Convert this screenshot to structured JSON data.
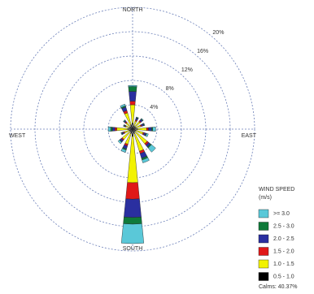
{
  "chart_data": {
    "type": "windrose",
    "categories": [
      "NORTH",
      null,
      null,
      null,
      "EAST",
      null,
      null,
      null,
      "SOUTH",
      null,
      null,
      null,
      "WEST",
      null,
      null,
      null
    ],
    "rlim": [
      0,
      20
    ],
    "rticks": [
      {
        "value": 4,
        "label": "4%"
      },
      {
        "value": 8,
        "label": "8%"
      },
      {
        "value": 12,
        "label": "12%"
      },
      {
        "value": 16,
        "label": "16%"
      },
      {
        "value": 20,
        "label": "20%"
      }
    ],
    "legend_title": "WIND SPEED",
    "legend_unit": "(m/s)",
    "calms": "Calms: 40.37%",
    "series": [
      {
        "name": "0.5 - 1.0",
        "color": "#000000",
        "values": [
          1.0,
          0.6,
          0.6,
          0.6,
          0.8,
          0.6,
          0.6,
          0.8,
          1.2,
          0.8,
          0.6,
          0.6,
          0.8,
          0.6,
          0.6,
          0.8
        ]
      },
      {
        "name": "1.0 - 1.5",
        "color": "#f2f200",
        "values": [
          3.0,
          0.8,
          1.0,
          0.8,
          1.5,
          1.2,
          2.5,
          3.0,
          7.6,
          1.8,
          1.6,
          0.8,
          1.8,
          0.6,
          0.8,
          2.0
        ]
      },
      {
        "name": "1.5 - 2.0",
        "color": "#e01818",
        "values": [
          0.6,
          0.2,
          0.2,
          0.2,
          0.3,
          0.2,
          0.3,
          0.4,
          2.7,
          0.3,
          0.2,
          0.2,
          0.3,
          0.1,
          0.2,
          0.4
        ]
      },
      {
        "name": "2.0 - 2.5",
        "color": "#2a2fa0",
        "values": [
          1.6,
          0.3,
          0.3,
          0.3,
          0.5,
          0.3,
          0.4,
          0.8,
          3.0,
          0.5,
          0.3,
          0.2,
          0.4,
          0.1,
          0.2,
          0.6
        ]
      },
      {
        "name": "2.5 - 3.0",
        "color": "#0f7a3a",
        "values": [
          0.8,
          0.1,
          0.1,
          0.1,
          0.2,
          0.1,
          0.2,
          0.3,
          1.1,
          0.2,
          0.1,
          0.1,
          0.3,
          0.1,
          0.1,
          0.2
        ]
      },
      {
        "name": ">= 3.0",
        "color": "#5ac8d8",
        "values": [
          0.2,
          0.1,
          0.1,
          0.1,
          0.5,
          0.3,
          0.9,
          0.5,
          3.2,
          0.4,
          0.3,
          0.1,
          0.4,
          0.1,
          0.1,
          0.3
        ]
      }
    ]
  }
}
